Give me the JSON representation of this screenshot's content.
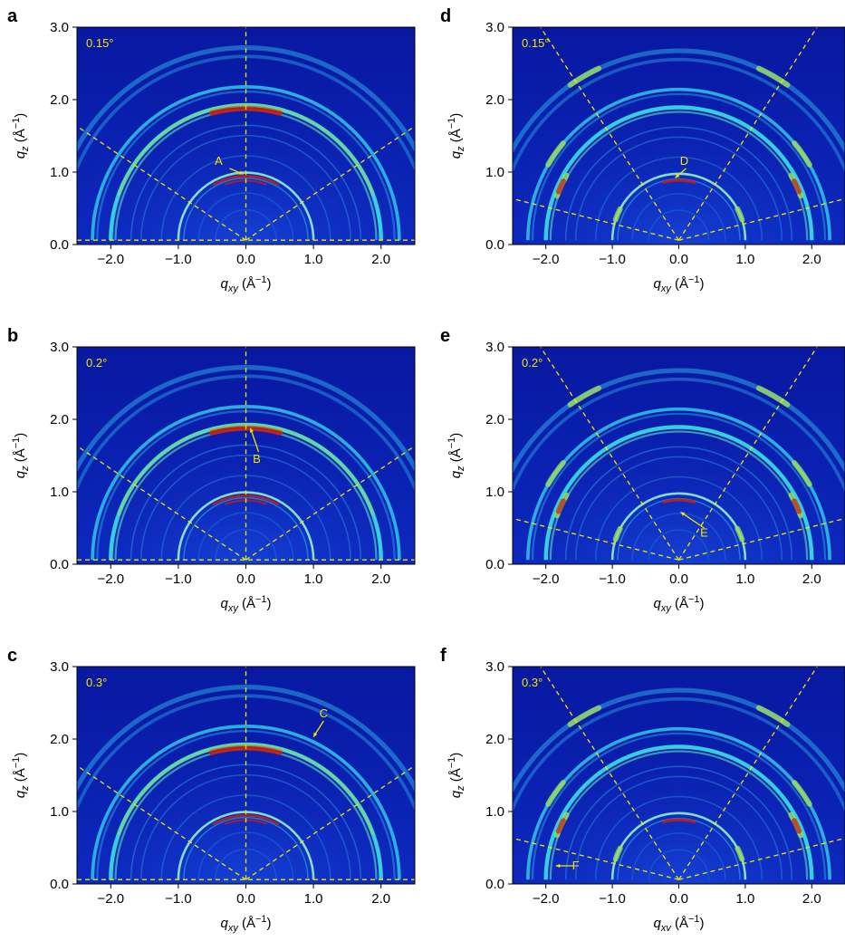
{
  "chart_data": [
    {
      "type": "heatmap",
      "panel": "a",
      "angle": "0.15°",
      "annotation": "A",
      "sector": "vertical",
      "xlabel_pre": "q",
      "xlabel_sub": "xy",
      "xlabel_unit": " (Å",
      "xlabel_sup": "−1",
      "xlabel_end": ")",
      "ylabel_pre": "q",
      "ylabel_sub": "z",
      "ylabel_unit": " (Å",
      "ylabel_sup": "−1",
      "ylabel_end": ")",
      "xticks": [
        "−2.0",
        "−1.0",
        "0.0",
        "1.0",
        "2.0"
      ],
      "yticks": [
        "0.0",
        "1.0",
        "2.0",
        "3.0"
      ],
      "xlim": [
        -2.5,
        2.5
      ],
      "ylim": [
        0,
        3
      ]
    },
    {
      "type": "heatmap",
      "panel": "b",
      "angle": "0.2°",
      "annotation": "B",
      "sector": "vertical",
      "xlabel_pre": "q",
      "xlabel_sub": "xy",
      "xlabel_unit": " (Å",
      "xlabel_sup": "−1",
      "xlabel_end": ")",
      "ylabel_pre": "q",
      "ylabel_sub": "z",
      "ylabel_unit": " (Å",
      "ylabel_sup": "−1",
      "ylabel_end": ")",
      "xticks": [
        "−2.0",
        "−1.0",
        "0.0",
        "1.0",
        "2.0"
      ],
      "yticks": [
        "0.0",
        "1.0",
        "2.0",
        "3.0"
      ],
      "xlim": [
        -2.5,
        2.5
      ],
      "ylim": [
        0,
        3
      ]
    },
    {
      "type": "heatmap",
      "panel": "c",
      "angle": "0.3°",
      "annotation": "C",
      "sector": "vertical",
      "xlabel_pre": "q",
      "xlabel_sub": "xy",
      "xlabel_unit": " (Å",
      "xlabel_sup": "−1",
      "xlabel_end": ")",
      "ylabel_pre": "q",
      "ylabel_sub": "z",
      "ylabel_unit": " (Å",
      "ylabel_sup": "−1",
      "ylabel_end": ")",
      "xticks": [
        "−2.0",
        "−1.0",
        "0.0",
        "1.0",
        "2.0"
      ],
      "yticks": [
        "0.0",
        "1.0",
        "2.0",
        "3.0"
      ],
      "xlim": [
        -2.5,
        2.5
      ],
      "ylim": [
        0,
        3
      ]
    },
    {
      "type": "heatmap",
      "panel": "d",
      "angle": "0.15°",
      "annotation": "D",
      "sector": "tilted",
      "xlabel_pre": "q",
      "xlabel_sub": "xy",
      "xlabel_unit": " (Å",
      "xlabel_sup": "−1",
      "xlabel_end": ")",
      "ylabel_pre": "q",
      "ylabel_sub": "z",
      "ylabel_unit": " (Å",
      "ylabel_sup": "−1",
      "ylabel_end": ")",
      "xticks": [
        "−2.0",
        "−1.0",
        "0.0",
        "1.0",
        "2.0"
      ],
      "yticks": [
        "0.0",
        "1.0",
        "2.0",
        "3.0"
      ],
      "xlim": [
        -2.5,
        2.5
      ],
      "ylim": [
        0,
        3
      ]
    },
    {
      "type": "heatmap",
      "panel": "e",
      "angle": "0.2°",
      "annotation": "E",
      "sector": "tilted",
      "xlabel_pre": "q",
      "xlabel_sub": "xy",
      "xlabel_unit": " (Å",
      "xlabel_sup": "−1",
      "xlabel_end": ")",
      "ylabel_pre": "q",
      "ylabel_sub": "z",
      "ylabel_unit": " (Å",
      "ylabel_sup": "−1",
      "ylabel_end": ")",
      "xticks": [
        "−2.0",
        "−1.0",
        "0.0",
        "1.0",
        "2.0"
      ],
      "yticks": [
        "0.0",
        "1.0",
        "2.0",
        "3.0"
      ],
      "xlim": [
        -2.5,
        2.5
      ],
      "ylim": [
        0,
        3
      ]
    },
    {
      "type": "heatmap",
      "panel": "f",
      "angle": "0.3°",
      "annotation": "F",
      "sector": "tilted",
      "xlabel_pre": "q",
      "xlabel_sub": "xv",
      "xlabel_unit": " (Å",
      "xlabel_sup": "−1",
      "xlabel_end": ")",
      "ylabel_pre": "q",
      "ylabel_sub": "z",
      "ylabel_unit": " (Å",
      "ylabel_sup": "−1",
      "ylabel_end": ")",
      "xticks": [
        "−2.0",
        "−1.0",
        "0.0",
        "1.0",
        "2.0"
      ],
      "yticks": [
        "0.0",
        "1.0",
        "2.0",
        "3.0"
      ],
      "xlim": [
        -2.5,
        2.5
      ],
      "ylim": [
        0,
        3
      ]
    }
  ],
  "colors": {
    "background": "#0a1aa8",
    "ring_cyan": "#2fd0e6",
    "ring_green": "#9ae060",
    "ring_red": "#c81e10",
    "guide": "#f2e600",
    "text": "#000000"
  }
}
